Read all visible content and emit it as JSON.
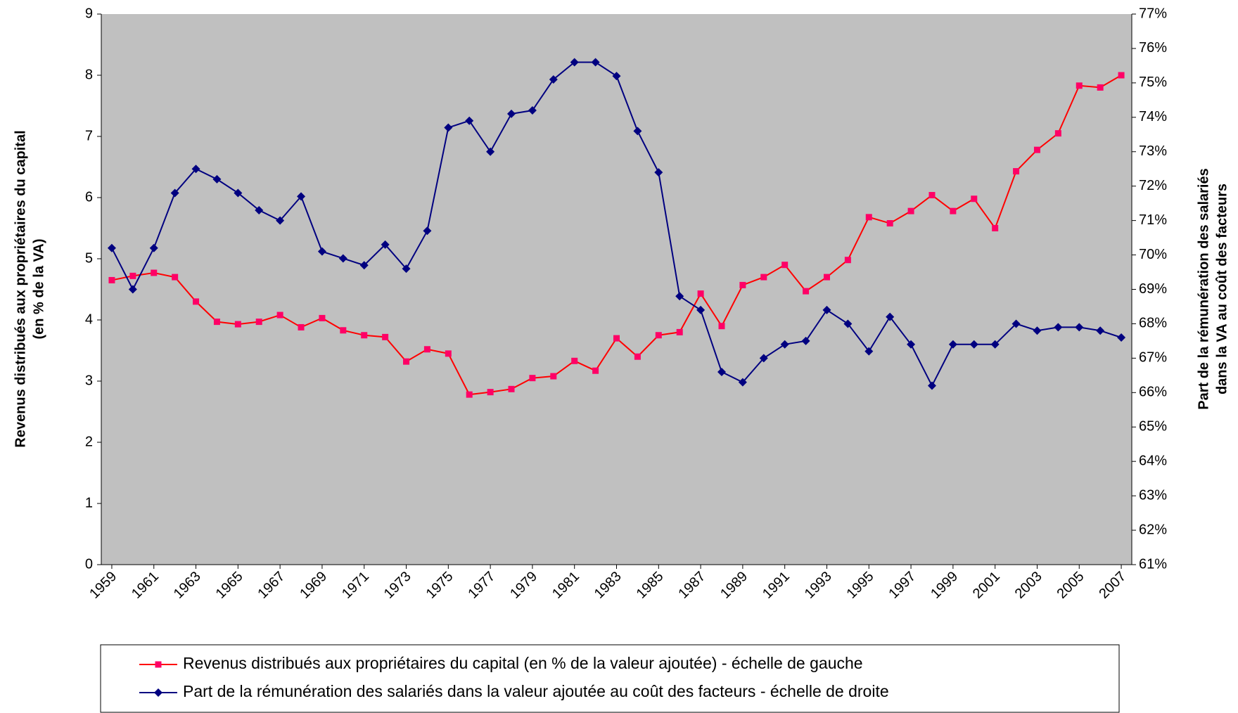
{
  "chart_data": {
    "type": "line",
    "ylabel": [
      "Revenus distribués aux propriétaires du capital",
      "(en % de la VA)"
    ],
    "y2label": [
      "Part de la rémunération des salariés",
      "dans la VA au coût des facteurs"
    ],
    "x": [
      1959,
      1960,
      1961,
      1962,
      1963,
      1964,
      1965,
      1966,
      1967,
      1968,
      1969,
      1970,
      1971,
      1972,
      1973,
      1974,
      1975,
      1976,
      1977,
      1978,
      1979,
      1980,
      1981,
      1982,
      1983,
      1984,
      1985,
      1986,
      1987,
      1988,
      1989,
      1990,
      1991,
      1992,
      1993,
      1994,
      1995,
      1996,
      1997,
      1998,
      1999,
      2000,
      2001,
      2002,
      2003,
      2004,
      2005,
      2006,
      2007
    ],
    "xlim": [
      1958.5,
      2007.5
    ],
    "xticks": [
      1959,
      1961,
      1963,
      1965,
      1967,
      1969,
      1971,
      1973,
      1975,
      1977,
      1979,
      1981,
      1983,
      1985,
      1987,
      1989,
      1991,
      1993,
      1995,
      1997,
      1999,
      2001,
      2003,
      2005,
      2007
    ],
    "ylim": [
      0,
      9
    ],
    "yticks": [
      0,
      1,
      2,
      3,
      4,
      5,
      6,
      7,
      8,
      9
    ],
    "y2lim": [
      61,
      77
    ],
    "y2ticks": [
      {
        "value": 61,
        "label": "61%"
      },
      {
        "value": 62,
        "label": "62%"
      },
      {
        "value": 63,
        "label": "63%"
      },
      {
        "value": 64,
        "label": "64%"
      },
      {
        "value": 65,
        "label": "65%"
      },
      {
        "value": 66,
        "label": "66%"
      },
      {
        "value": 67,
        "label": "67%"
      },
      {
        "value": 68,
        "label": "68%"
      },
      {
        "value": 69,
        "label": "69%"
      },
      {
        "value": 70,
        "label": "70%"
      },
      {
        "value": 71,
        "label": "71%"
      },
      {
        "value": 72,
        "label": "72%"
      },
      {
        "value": 73,
        "label": "73%"
      },
      {
        "value": 74,
        "label": "74%"
      },
      {
        "value": 75,
        "label": "75%"
      },
      {
        "value": 76,
        "label": "76%"
      },
      {
        "value": 77,
        "label": "77%"
      }
    ],
    "background": "#c0c0c0",
    "series": [
      {
        "name": "Revenus distribués aux propriétaires du capital (en % de la valeur ajoutée) - échelle de gauche",
        "color": "#ff0000",
        "marker_color": "#ff0066",
        "marker": "square",
        "values": [
          4.65,
          4.72,
          4.77,
          4.7,
          4.3,
          3.97,
          3.93,
          3.97,
          4.08,
          3.88,
          4.03,
          3.83,
          3.75,
          3.72,
          3.32,
          3.52,
          3.45,
          2.78,
          2.82,
          2.87,
          3.05,
          3.08,
          3.33,
          3.17,
          3.7,
          3.4,
          3.75,
          3.8,
          4.43,
          3.9,
          4.57,
          4.7,
          4.9,
          4.47,
          4.7,
          4.98,
          5.68,
          5.58,
          5.78,
          6.04,
          5.78,
          5.98,
          5.5,
          6.43,
          6.78,
          7.05,
          7.83,
          7.8,
          8.0
        ]
      },
      {
        "name": "Part de la rémunération des salariés dans la valeur ajoutée au coût des facteurs - échelle de droite",
        "color": "#000080",
        "marker_color": "#000080",
        "marker": "diamond",
        "axis": "y2",
        "values": [
          70.2,
          69.0,
          70.2,
          71.8,
          72.5,
          72.2,
          71.8,
          71.3,
          71.0,
          71.7,
          70.1,
          69.9,
          69.7,
          70.3,
          69.6,
          70.7,
          73.7,
          73.9,
          73.0,
          74.1,
          74.2,
          75.1,
          75.6,
          75.6,
          75.2,
          73.6,
          72.4,
          68.8,
          68.4,
          66.6,
          66.3,
          67.0,
          67.4,
          67.5,
          68.4,
          68.0,
          67.2,
          68.2,
          67.4,
          66.2,
          67.4,
          67.4,
          67.4,
          68.0,
          67.8,
          67.9,
          67.9,
          67.8,
          67.6
        ]
      }
    ]
  }
}
